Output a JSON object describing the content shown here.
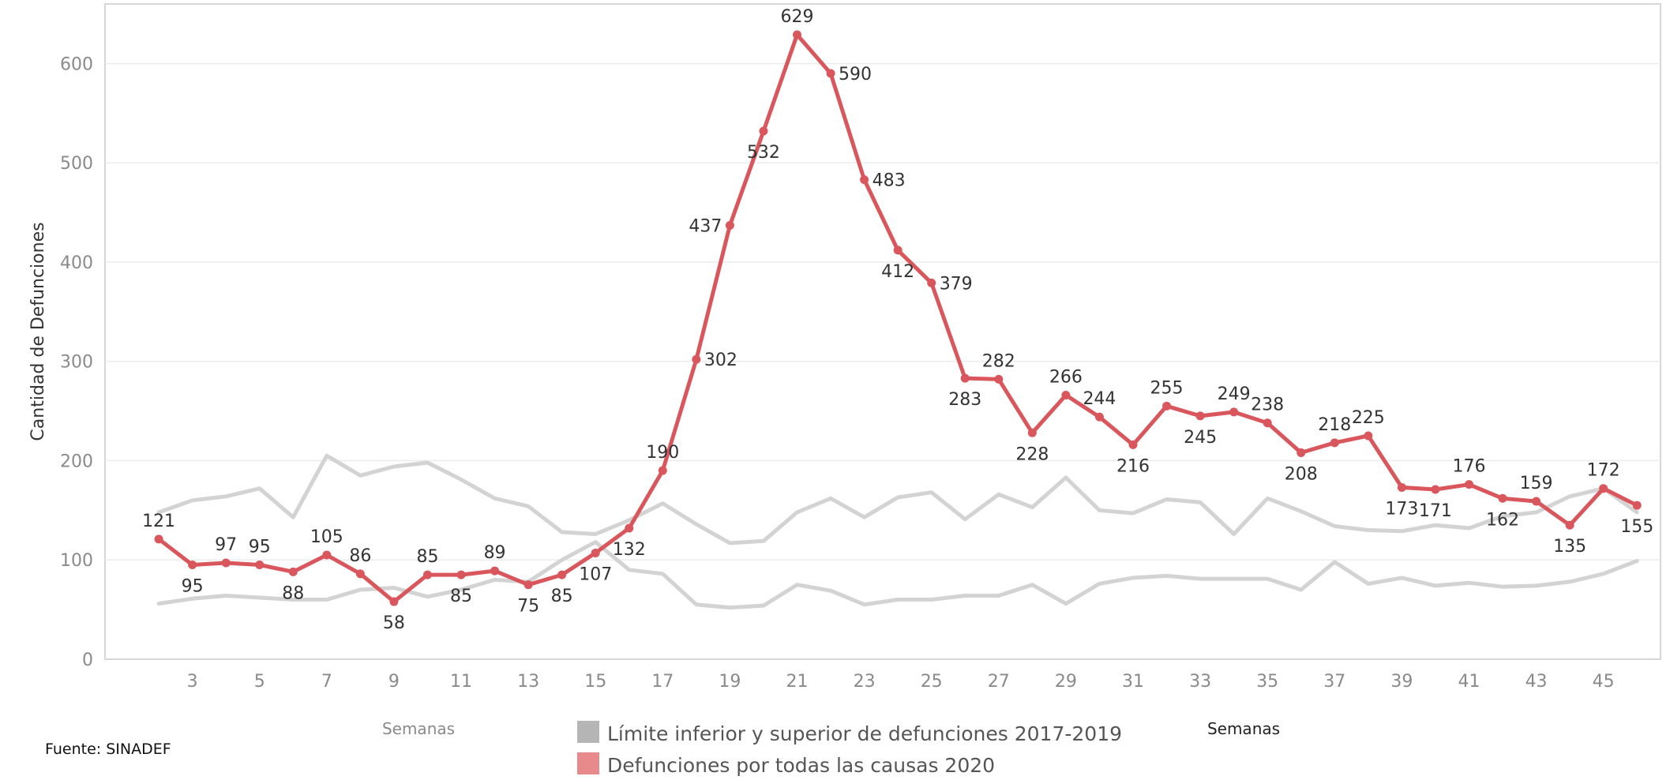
{
  "chart_data": {
    "type": "line",
    "title": "",
    "ylabel": "Cantidad de Defunciones",
    "xlabel_left": "Semanas",
    "xlabel_right": "Semanas",
    "source": "Fuente: SINADEF",
    "ylim": [
      0,
      660
    ],
    "yticks": [
      0,
      100,
      200,
      300,
      400,
      500,
      600
    ],
    "xlim": [
      0.4,
      46.7
    ],
    "xticks": [
      3,
      5,
      7,
      9,
      11,
      13,
      15,
      17,
      19,
      21,
      23,
      25,
      27,
      29,
      31,
      33,
      35,
      37,
      39,
      41,
      43,
      45
    ],
    "grid": true,
    "legend_placement": "bottom-center",
    "legend": [
      {
        "label": "Límite inferior y superior de defunciones 2017-2019",
        "color": "#b5b5b5"
      },
      {
        "label": "Defunciones por todas las causas 2020",
        "color": "#e8898b"
      }
    ],
    "series": [
      {
        "name": "Defunciones por todas las causas 2020",
        "color": "#d9575c",
        "x": [
          2,
          3,
          4,
          5,
          6,
          7,
          8,
          9,
          10,
          11,
          12,
          13,
          14,
          15,
          16,
          17,
          18,
          19,
          20,
          21,
          22,
          23,
          24,
          25,
          26,
          27,
          28,
          29,
          30,
          31,
          32,
          33,
          34,
          35,
          36,
          37,
          38,
          39,
          40,
          41,
          42,
          43,
          44,
          45,
          46
        ],
        "values": [
          121,
          95,
          97,
          95,
          88,
          105,
          86,
          58,
          85,
          85,
          89,
          75,
          85,
          107,
          132,
          190,
          302,
          437,
          532,
          629,
          590,
          483,
          412,
          379,
          283,
          282,
          228,
          266,
          244,
          216,
          255,
          245,
          249,
          238,
          208,
          218,
          225,
          173,
          171,
          176,
          162,
          159,
          135,
          172,
          155
        ],
        "label_positions": [
          "above",
          "below",
          "above",
          "above",
          "below",
          "above",
          "above",
          "below",
          "above",
          "below",
          "above",
          "below",
          "below",
          "below",
          "below",
          "above",
          "right",
          "left",
          "below",
          "above",
          "right",
          "right",
          "below",
          "right",
          "below",
          "above",
          "below",
          "above",
          "above",
          "below",
          "above",
          "below",
          "above",
          "above",
          "below",
          "above",
          "above",
          "below",
          "below",
          "above",
          "below",
          "above",
          "below",
          "above",
          "below"
        ]
      },
      {
        "name": "Límite superior 2017-2019",
        "color": "#d3d3d3",
        "x": [
          2,
          3,
          4,
          5,
          6,
          7,
          8,
          9,
          10,
          11,
          12,
          13,
          14,
          15,
          16,
          17,
          18,
          19,
          20,
          21,
          22,
          23,
          24,
          25,
          26,
          27,
          28,
          29,
          30,
          31,
          32,
          33,
          34,
          35,
          36,
          37,
          38,
          39,
          40,
          41,
          42,
          43,
          44,
          45,
          46
        ],
        "values": [
          148,
          160,
          164,
          172,
          143,
          205,
          185,
          194,
          198,
          181,
          162,
          154,
          128,
          126,
          140,
          157,
          136,
          117,
          119,
          148,
          162,
          143,
          163,
          168,
          141,
          166,
          153,
          183,
          150,
          147,
          161,
          158,
          126,
          162,
          149,
          134,
          130,
          129,
          135,
          132,
          144,
          148,
          164,
          172,
          148
        ]
      },
      {
        "name": "Límite inferior 2017-2019",
        "color": "#d3d3d3",
        "x": [
          2,
          3,
          4,
          5,
          6,
          7,
          8,
          9,
          10,
          11,
          12,
          13,
          14,
          15,
          16,
          17,
          18,
          19,
          20,
          21,
          22,
          23,
          24,
          25,
          26,
          27,
          28,
          29,
          30,
          31,
          32,
          33,
          34,
          35,
          36,
          37,
          38,
          39,
          40,
          41,
          42,
          43,
          44,
          45,
          46
        ],
        "values": [
          56,
          61,
          64,
          62,
          60,
          60,
          70,
          72,
          63,
          70,
          80,
          78,
          100,
          118,
          90,
          86,
          55,
          52,
          54,
          75,
          69,
          55,
          60,
          60,
          64,
          64,
          75,
          56,
          76,
          82,
          84,
          81,
          81,
          81,
          70,
          98,
          76,
          82,
          74,
          77,
          73,
          74,
          78,
          86,
          99
        ]
      }
    ]
  }
}
